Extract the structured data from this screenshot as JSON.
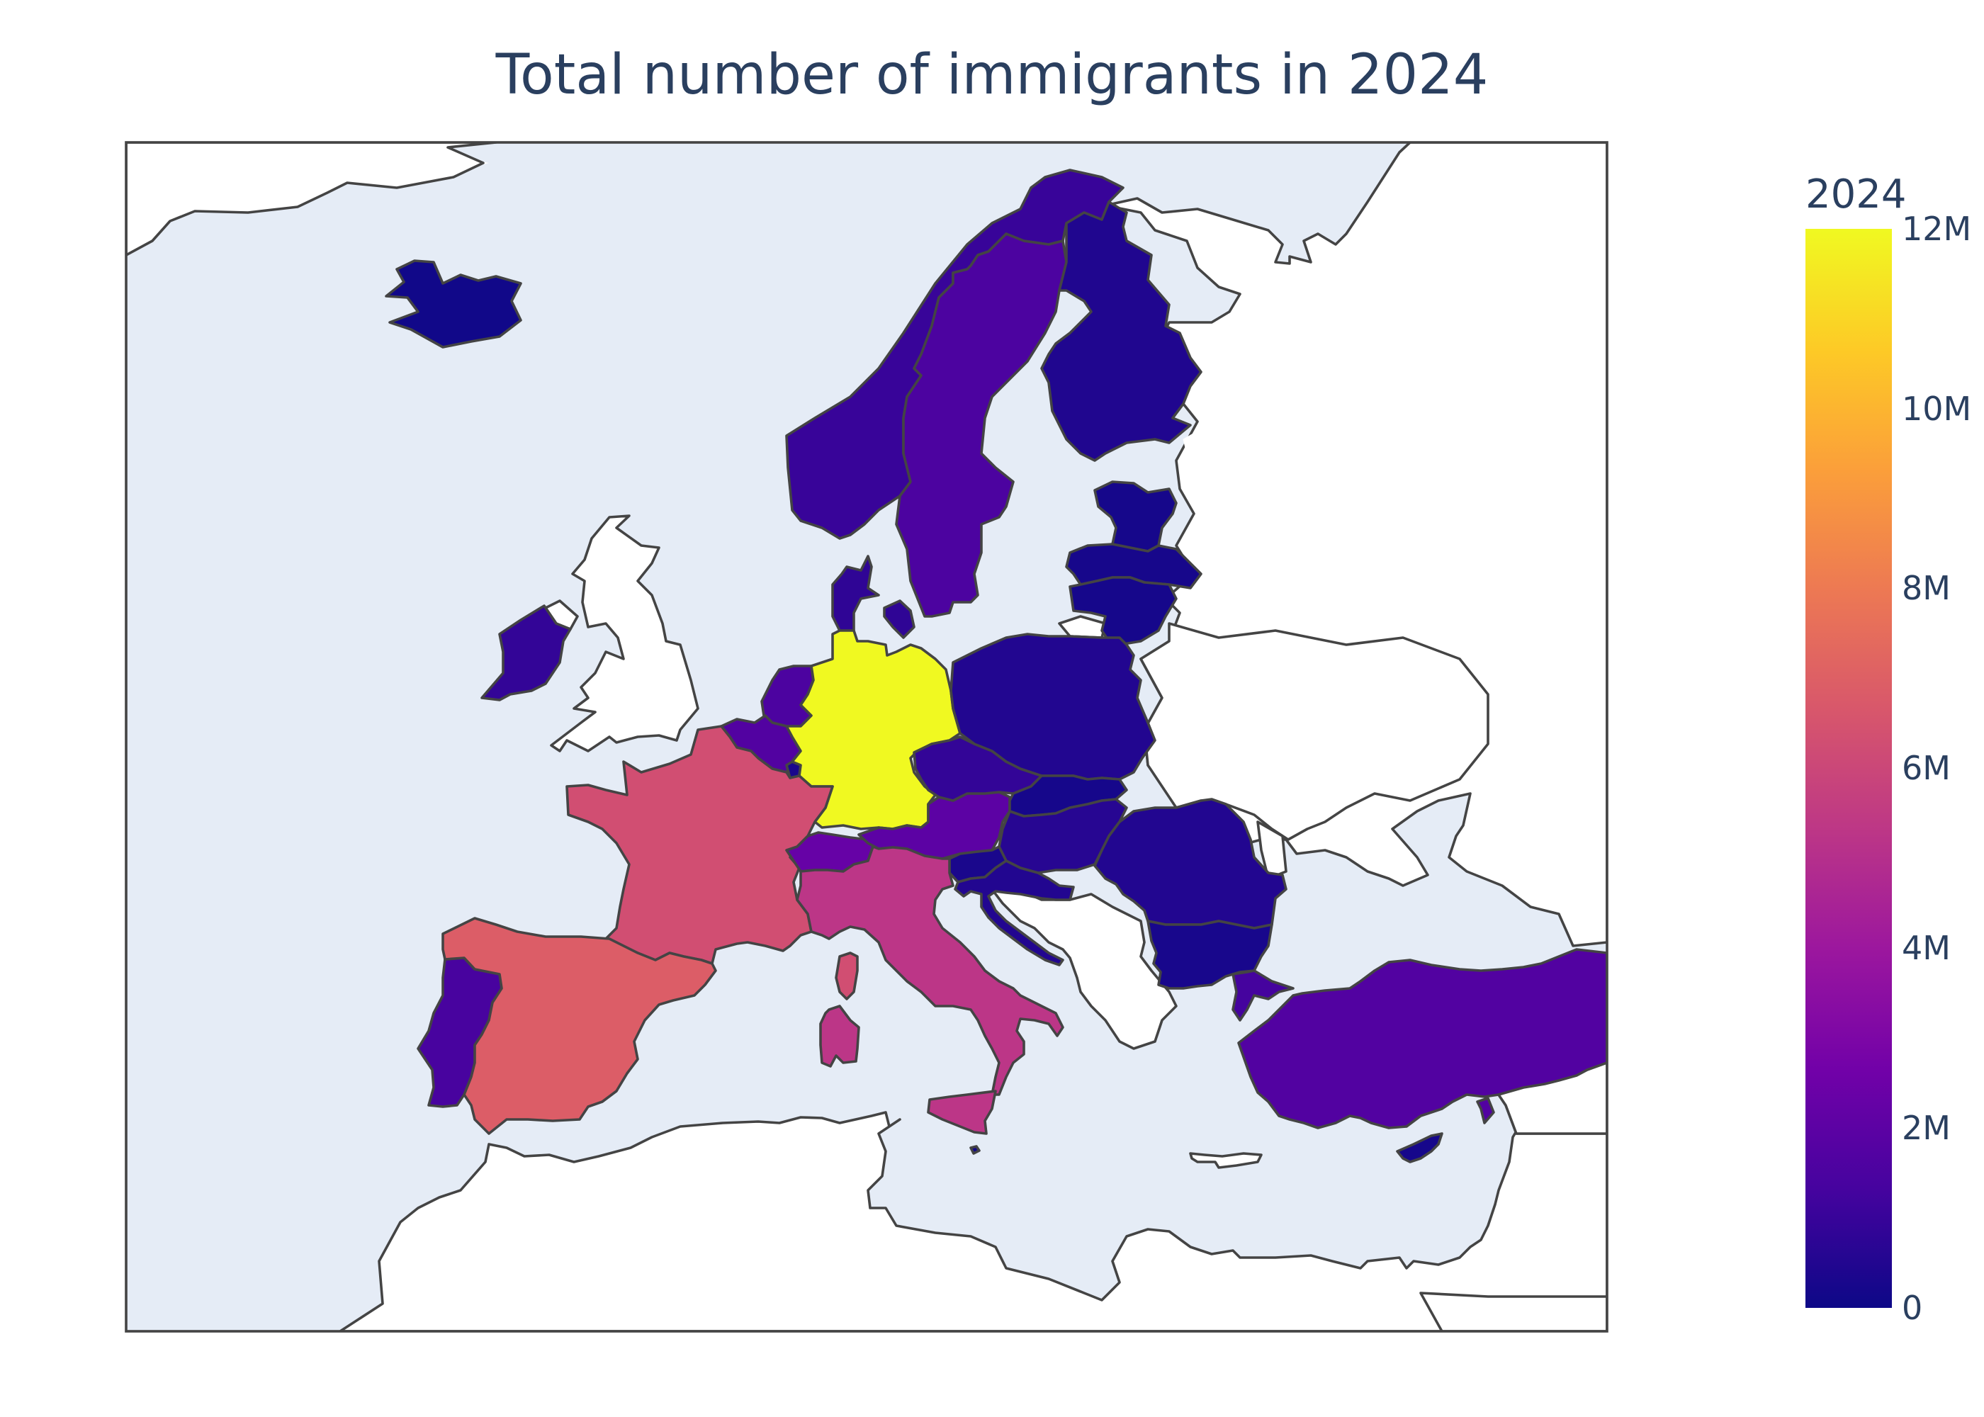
{
  "chart": {
    "title": "Total number of immigrants in 2024"
  },
  "colorbar": {
    "title": "2024",
    "ticks": [
      {
        "label": "12M",
        "value": 12000000
      },
      {
        "label": "10M",
        "value": 10000000
      },
      {
        "label": "8M",
        "value": 8000000
      },
      {
        "label": "6M",
        "value": 6000000
      },
      {
        "label": "4M",
        "value": 4000000
      },
      {
        "label": "2M",
        "value": 2000000
      },
      {
        "label": "0",
        "value": 0
      }
    ],
    "range": [
      0,
      12000000
    ],
    "colorscale": [
      "#0d0887",
      "#46039f",
      "#7201a8",
      "#9c179e",
      "#bd3786",
      "#d8576b",
      "#ed7953",
      "#fb9f3a",
      "#fdca26",
      "#f0f921"
    ]
  },
  "colors": {
    "ocean": "#e5ecf6",
    "land": "#ffffff",
    "border": "#444444",
    "text": "#2a3f5f"
  },
  "chart_data": {
    "type": "choropleth",
    "title": "Total number of immigrants in 2024",
    "colorbar_title": "2024",
    "zrange": [
      0,
      12000000
    ],
    "countries": [
      {
        "name": "Germany",
        "value": 12000000
      },
      {
        "name": "Spain",
        "value": 6900000
      },
      {
        "name": "France",
        "value": 6300000
      },
      {
        "name": "Italy",
        "value": 5300000
      },
      {
        "name": "Austria",
        "value": 2000000
      },
      {
        "name": "Switzerland",
        "value": 2300000
      },
      {
        "name": "Sweden",
        "value": 1500000
      },
      {
        "name": "Belgium",
        "value": 1700000
      },
      {
        "name": "Netherlands",
        "value": 1500000
      },
      {
        "name": "Portugal",
        "value": 1400000
      },
      {
        "name": "Greece",
        "value": 1300000
      },
      {
        "name": "Turkey",
        "value": 1700000
      },
      {
        "name": "Norway",
        "value": 1000000
      },
      {
        "name": "Denmark",
        "value": 800000
      },
      {
        "name": "Czechia",
        "value": 900000
      },
      {
        "name": "Poland",
        "value": 500000
      },
      {
        "name": "Ireland",
        "value": 900000
      },
      {
        "name": "Finland",
        "value": 450000
      },
      {
        "name": "Estonia",
        "value": 200000
      },
      {
        "name": "Latvia",
        "value": 230000
      },
      {
        "name": "Lithuania",
        "value": 200000
      },
      {
        "name": "Slovakia",
        "value": 200000
      },
      {
        "name": "Hungary",
        "value": 600000
      },
      {
        "name": "Romania",
        "value": 500000
      },
      {
        "name": "Bulgaria",
        "value": 250000
      },
      {
        "name": "Slovenia",
        "value": 300000
      },
      {
        "name": "Croatia",
        "value": 500000
      },
      {
        "name": "Iceland",
        "value": 90000
      },
      {
        "name": "Luxembourg",
        "value": 300000
      },
      {
        "name": "Cyprus",
        "value": 200000
      },
      {
        "name": "Malta",
        "value": 120000
      }
    ]
  }
}
